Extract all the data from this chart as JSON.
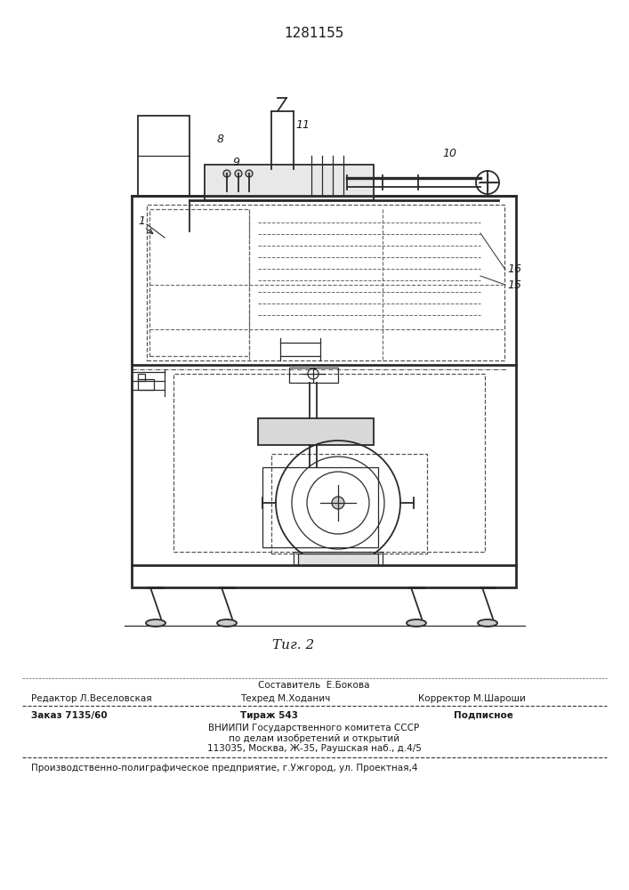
{
  "patent_number": "1281155",
  "fig_label": "Τиг. 2",
  "sestavitel": "Составитель  Е.Бокова",
  "redaktor": "Редактор Л.Веселовская",
  "tehred": "Техред М.Ходанич",
  "korrektor": "Корректор М.Шароши",
  "zakaz": "Заказ 7135/60",
  "tirazh": "Тираж 543",
  "podpisnoe": "Подписное",
  "vniip1": "ВНИИПИ Государственного комитета СССР",
  "vniip2": "по делам изобретений и открытий",
  "vniip3": "113035, Москва, Ж-35, Раушская наб., д.4/5",
  "proizv": "Производственно-полиграфическое предприятие, г.Ужгород, ул. Проектная,4",
  "bg_color": "#ffffff",
  "text_color": "#1a1a1a",
  "draw_color": "#2a2a2a"
}
